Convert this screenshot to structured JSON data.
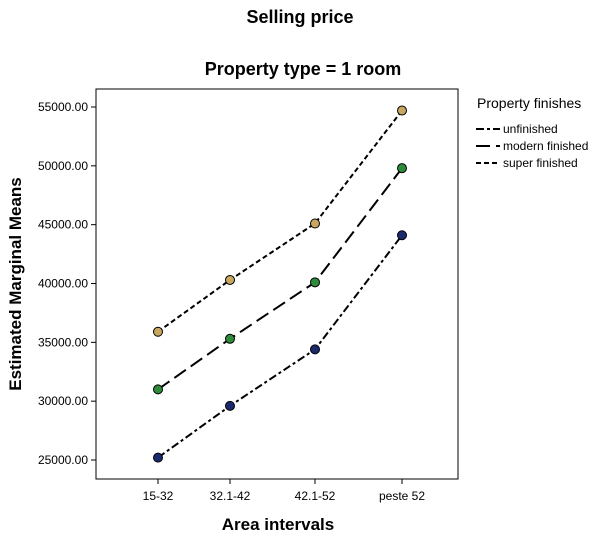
{
  "chart_data": {
    "type": "line",
    "title": "Selling price",
    "subtitle": "Property type = 1 room",
    "xlabel": "Area intervals",
    "ylabel": "Estimated Marginal Means",
    "categories": [
      "15-32",
      "32.1-42",
      "42.1-52",
      "peste 52"
    ],
    "y_ticks": [
      "25000.00",
      "30000.00",
      "35000.00",
      "40000.00",
      "45000.00",
      "50000.00",
      "55000.00"
    ],
    "ylim": [
      24000,
      56000
    ],
    "grid": false,
    "legend": {
      "title": "Property finishes",
      "position": "right"
    },
    "series": [
      {
        "name": "unfinished",
        "values": [
          25200,
          29600,
          34400,
          44100
        ],
        "marker_color": "#1a2a6c",
        "dash": "8,3,3,3"
      },
      {
        "name": "modern finished",
        "values": [
          31000,
          35300,
          40100,
          49800
        ],
        "marker_color": "#2e8b3a",
        "dash": "14,6"
      },
      {
        "name": "super finished",
        "values": [
          35900,
          40300,
          45100,
          54700
        ],
        "marker_color": "#c8a860",
        "dash": "5,3"
      }
    ]
  }
}
